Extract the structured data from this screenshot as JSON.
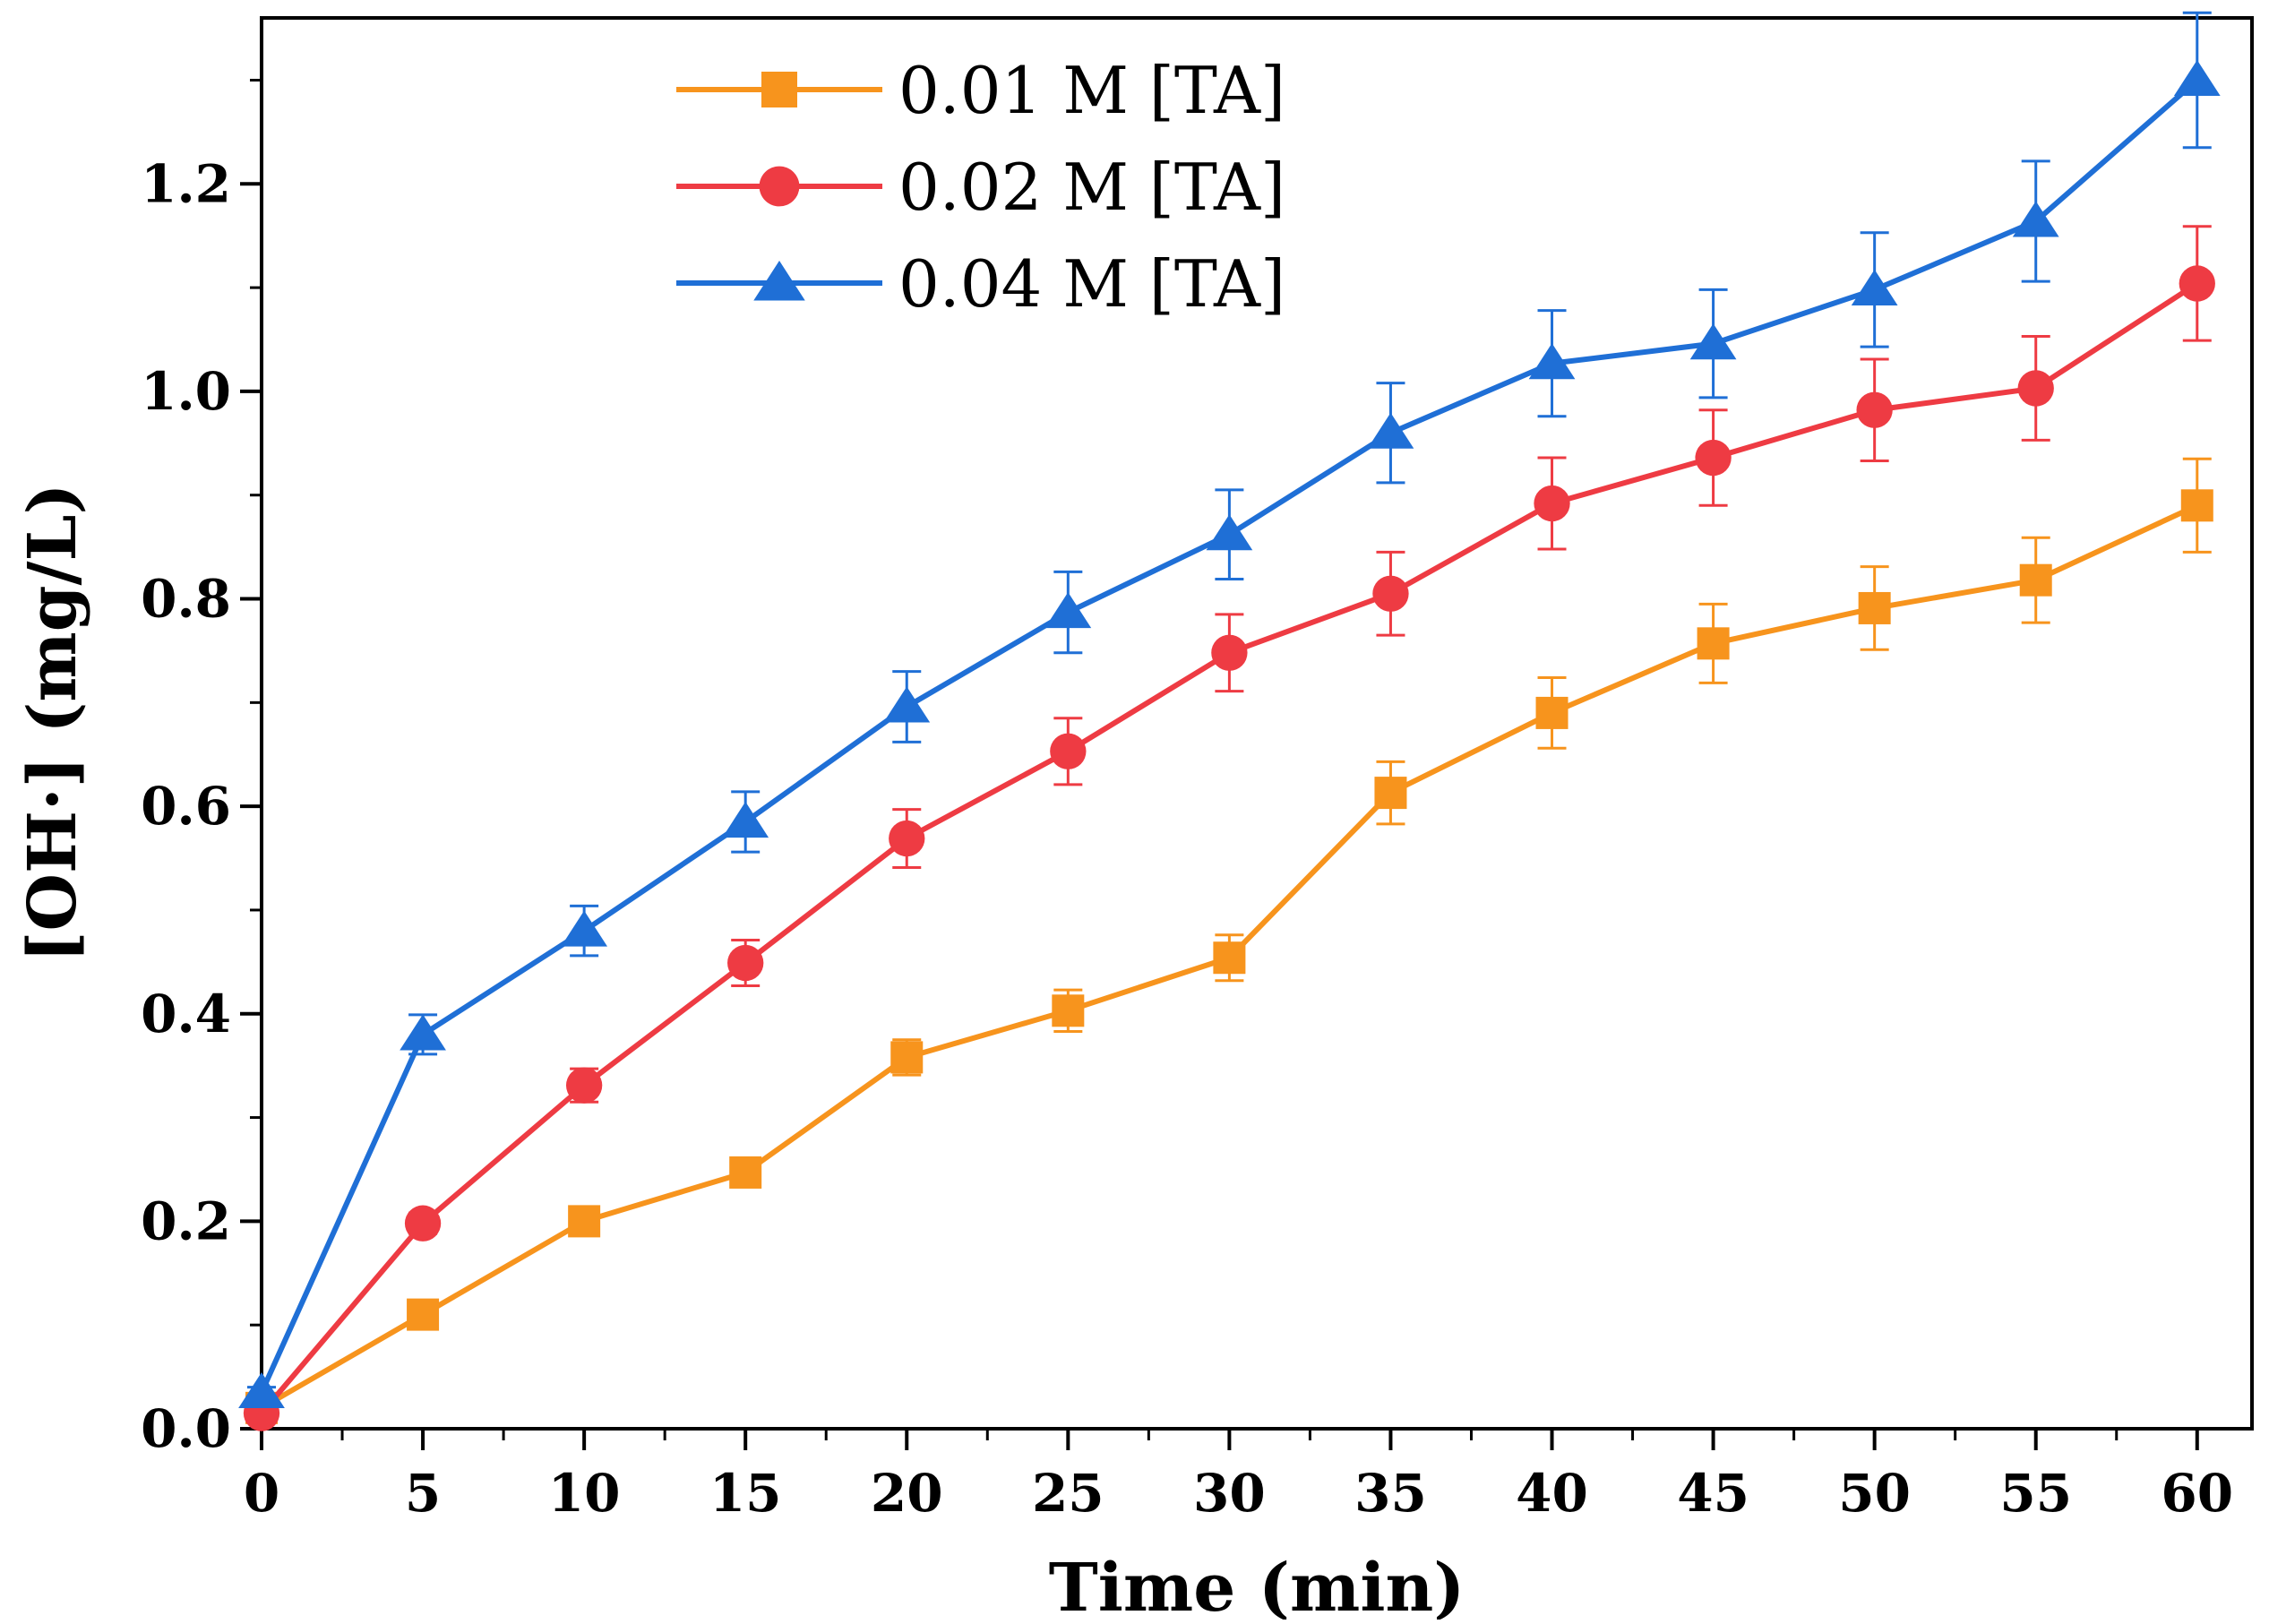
{
  "chart_data": {
    "type": "line",
    "title": "",
    "xlabel": "Time (min)",
    "ylabel": "[OH·] (mg/L)",
    "xlim": [
      0,
      61.7
    ],
    "ylim": [
      0,
      1.36
    ],
    "xticks": [
      0,
      5,
      10,
      15,
      20,
      25,
      30,
      35,
      40,
      45,
      50,
      55,
      60
    ],
    "xtick_labels": [
      "0",
      "5",
      "10",
      "15",
      "20",
      "25",
      "30",
      "35",
      "40",
      "45",
      "50",
      "55",
      "60"
    ],
    "yticks": [
      0.0,
      0.2,
      0.4,
      0.6,
      0.8,
      1.0,
      1.2
    ],
    "ytick_labels": [
      "0.0",
      "0.2",
      "0.4",
      "0.6",
      "0.8",
      "1.0",
      "1.2"
    ],
    "grid": false,
    "legend_position": "top-center",
    "x": [
      0,
      5,
      10,
      15,
      20,
      25,
      30,
      35,
      40,
      45,
      50,
      55,
      60
    ],
    "series": [
      {
        "name": "0.01 M [TA]",
        "color": "#f7941d",
        "marker": "square",
        "values": [
          0.02,
          0.11,
          0.2,
          0.247,
          0.358,
          0.403,
          0.454,
          0.613,
          0.69,
          0.757,
          0.791,
          0.818,
          0.89
        ],
        "errors": [
          0.005,
          0.008,
          0.01,
          0.01,
          0.017,
          0.02,
          0.022,
          0.03,
          0.034,
          0.038,
          0.04,
          0.041,
          0.045
        ]
      },
      {
        "name": "0.02 M [TA]",
        "color": "#ee3b43",
        "marker": "circle",
        "values": [
          0.015,
          0.198,
          0.331,
          0.449,
          0.569,
          0.653,
          0.748,
          0.805,
          0.892,
          0.936,
          0.982,
          1.003,
          1.104
        ],
        "errors": [
          0.005,
          0.01,
          0.016,
          0.022,
          0.028,
          0.032,
          0.037,
          0.04,
          0.044,
          0.046,
          0.049,
          0.05,
          0.055
        ]
      },
      {
        "name": "0.04 M [TA]",
        "color": "#1f6fd6",
        "marker": "triangle",
        "values": [
          0.035,
          0.38,
          0.48,
          0.585,
          0.696,
          0.787,
          0.862,
          0.96,
          1.027,
          1.046,
          1.098,
          1.164,
          1.3
        ],
        "errors": [
          0.005,
          0.019,
          0.024,
          0.029,
          0.034,
          0.039,
          0.043,
          0.048,
          0.051,
          0.052,
          0.055,
          0.058,
          0.065
        ]
      }
    ]
  }
}
